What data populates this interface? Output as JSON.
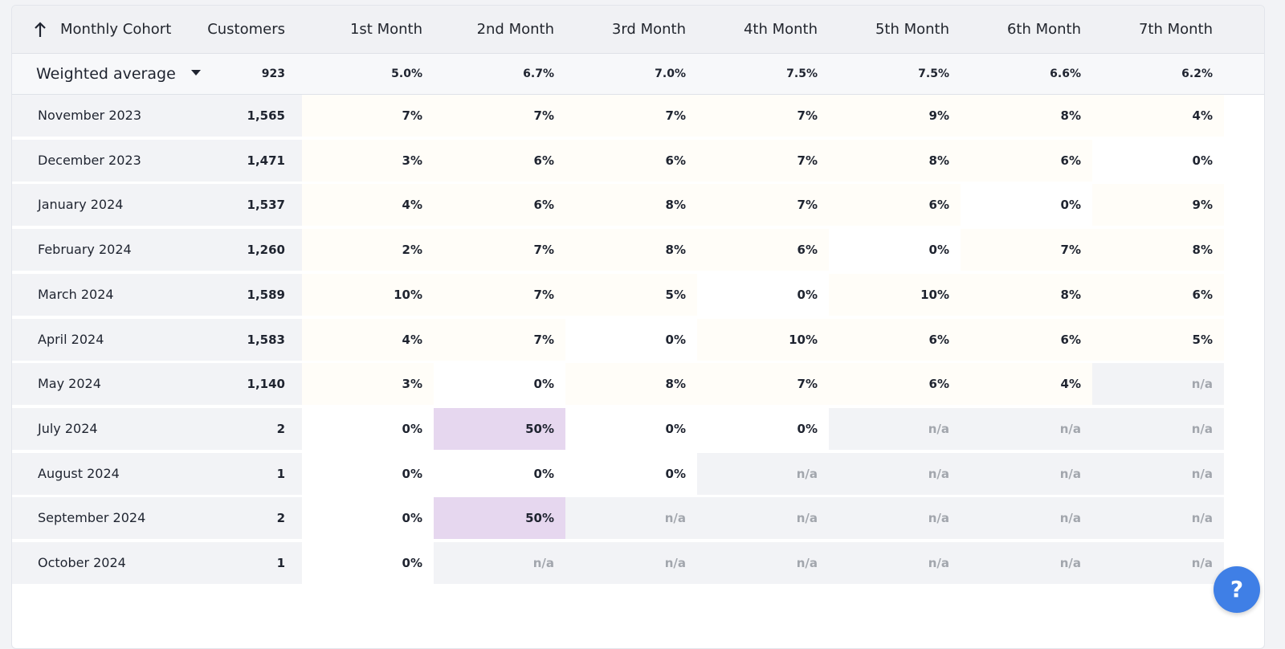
{
  "header": {
    "cohort_label": "Monthly Cohort",
    "customers_label": "Customers",
    "months": [
      "1st Month",
      "2nd Month",
      "3rd Month",
      "4th Month",
      "5th Month",
      "6th Month",
      "7th Month"
    ]
  },
  "weighted_average": {
    "label": "Weighted average",
    "customers": "923",
    "values": [
      "5.0%",
      "6.7%",
      "7.0%",
      "7.5%",
      "7.5%",
      "6.6%",
      "6.2%"
    ]
  },
  "rows": [
    {
      "cohort": "November 2023",
      "customers": "1,565",
      "values": [
        "7%",
        "7%",
        "7%",
        "7%",
        "9%",
        "8%",
        "4%"
      ]
    },
    {
      "cohort": "December 2023",
      "customers": "1,471",
      "values": [
        "3%",
        "6%",
        "6%",
        "7%",
        "8%",
        "6%",
        "0%"
      ]
    },
    {
      "cohort": "January 2024",
      "customers": "1,537",
      "values": [
        "4%",
        "6%",
        "8%",
        "7%",
        "6%",
        "0%",
        "9%"
      ]
    },
    {
      "cohort": "February 2024",
      "customers": "1,260",
      "values": [
        "2%",
        "7%",
        "8%",
        "6%",
        "0%",
        "7%",
        "8%"
      ]
    },
    {
      "cohort": "March 2024",
      "customers": "1,589",
      "values": [
        "10%",
        "7%",
        "5%",
        "0%",
        "10%",
        "8%",
        "6%"
      ]
    },
    {
      "cohort": "April 2024",
      "customers": "1,583",
      "values": [
        "4%",
        "7%",
        "0%",
        "10%",
        "6%",
        "6%",
        "5%"
      ]
    },
    {
      "cohort": "May 2024",
      "customers": "1,140",
      "values": [
        "3%",
        "0%",
        "8%",
        "7%",
        "6%",
        "4%",
        "n/a"
      ]
    },
    {
      "cohort": "July 2024",
      "customers": "2",
      "values": [
        "0%",
        "50%",
        "0%",
        "0%",
        "n/a",
        "n/a",
        "n/a"
      ]
    },
    {
      "cohort": "August 2024",
      "customers": "1",
      "values": [
        "0%",
        "0%",
        "0%",
        "n/a",
        "n/a",
        "n/a",
        "n/a"
      ]
    },
    {
      "cohort": "September 2024",
      "customers": "2",
      "values": [
        "0%",
        "50%",
        "n/a",
        "n/a",
        "n/a",
        "n/a",
        "n/a"
      ]
    },
    {
      "cohort": "October 2024",
      "customers": "1",
      "values": [
        "0%",
        "n/a",
        "n/a",
        "n/a",
        "n/a",
        "n/a",
        "n/a"
      ]
    }
  ],
  "colors": {
    "accent": "#3f7fe6",
    "highlight_high": "#e6d7ef",
    "highlight_low": "#fffdf8",
    "na_bg": "#f2f3f6"
  },
  "help": {
    "label": "?"
  }
}
